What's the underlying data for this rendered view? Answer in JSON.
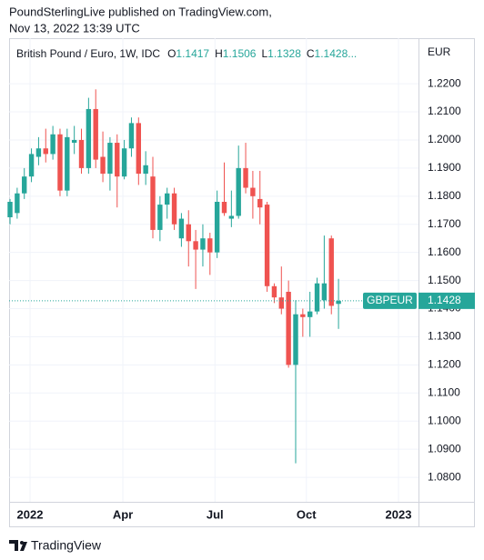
{
  "header": {
    "line1": "PoundSterlingLive published on TradingView.com,",
    "line2": "Nov 13, 2022 13:39 UTC"
  },
  "footer": {
    "brand": "TradingView"
  },
  "chart_data": {
    "type": "candlestick",
    "title": "British Pound / Euro, 1W, IDC",
    "ohlc_labels": [
      "O",
      "H",
      "L",
      "C"
    ],
    "legend_more": "...",
    "currency": "EUR",
    "symbol": "GBPEUR",
    "up_color": "#26a69a",
    "down_color": "#ef5350",
    "grid": true,
    "x": [
      0,
      1,
      2,
      3,
      4,
      5,
      6,
      7,
      8,
      9,
      10,
      11,
      12,
      13,
      14,
      15,
      16,
      17,
      18,
      19,
      20,
      21,
      22,
      23,
      24,
      25,
      26,
      27,
      28,
      29,
      30,
      31,
      32,
      33,
      34,
      35,
      36,
      37,
      38,
      39,
      40,
      41,
      42,
      43,
      44,
      45,
      46
    ],
    "open": [
      1.1725,
      1.174,
      1.181,
      1.187,
      1.194,
      1.197,
      1.195,
      1.202,
      1.182,
      1.199,
      1.2,
      1.19,
      1.211,
      1.194,
      1.188,
      1.199,
      1.187,
      1.197,
      1.206,
      1.188,
      1.187,
      1.168,
      1.177,
      1.181,
      1.165,
      1.17,
      1.164,
      1.161,
      1.165,
      1.16,
      1.178,
      1.172,
      1.173,
      1.19,
      1.183,
      1.179,
      1.177,
      1.148,
      1.144,
      1.146,
      1.12,
      1.138,
      1.137,
      1.139,
      1.143,
      1.165,
      1.1417
    ],
    "high": [
      1.179,
      1.183,
      1.19,
      1.197,
      1.201,
      1.204,
      1.205,
      1.204,
      1.204,
      1.205,
      1.204,
      1.215,
      1.218,
      1.203,
      1.201,
      1.202,
      1.2,
      1.208,
      1.208,
      1.196,
      1.194,
      1.18,
      1.183,
      1.183,
      1.174,
      1.175,
      1.168,
      1.17,
      1.167,
      1.182,
      1.192,
      1.182,
      1.198,
      1.199,
      1.189,
      1.189,
      1.178,
      1.149,
      1.155,
      1.15,
      1.143,
      1.14,
      1.146,
      1.151,
      1.166,
      1.166,
      1.1506
    ],
    "low": [
      1.17,
      1.172,
      1.179,
      1.185,
      1.191,
      1.192,
      1.193,
      1.18,
      1.18,
      1.195,
      1.188,
      1.188,
      1.19,
      1.185,
      1.182,
      1.176,
      1.186,
      1.194,
      1.184,
      1.184,
      1.165,
      1.164,
      1.172,
      1.168,
      1.162,
      1.155,
      1.147,
      1.155,
      1.152,
      1.158,
      1.173,
      1.169,
      1.172,
      1.181,
      1.172,
      1.17,
      1.146,
      1.142,
      1.138,
      1.119,
      1.085,
      1.13,
      1.13,
      1.138,
      1.14,
      1.138,
      1.1328
    ],
    "close": [
      1.178,
      1.181,
      1.187,
      1.195,
      1.197,
      1.195,
      1.202,
      1.182,
      1.201,
      1.2,
      1.19,
      1.211,
      1.193,
      1.188,
      1.199,
      1.187,
      1.197,
      1.206,
      1.188,
      1.191,
      1.168,
      1.177,
      1.181,
      1.17,
      1.172,
      1.164,
      1.161,
      1.165,
      1.16,
      1.178,
      1.174,
      1.173,
      1.19,
      1.183,
      1.18,
      1.176,
      1.148,
      1.144,
      1.14,
      1.12,
      1.138,
      1.137,
      1.139,
      1.149,
      1.149,
      1.141,
      1.1428
    ],
    "xlim": [
      -0.13,
      57.2
    ],
    "xticks": [
      {
        "value": 2.8,
        "label": "2022"
      },
      {
        "value": 15.8,
        "label": "Apr"
      },
      {
        "value": 28.7,
        "label": "Jul"
      },
      {
        "value": 41.5,
        "label": "Oct"
      },
      {
        "value": 54.4,
        "label": "2023"
      }
    ],
    "ylim": [
      1.0713,
      1.2362
    ],
    "yticks": [
      {
        "value": 1.22,
        "label": "1.2200"
      },
      {
        "value": 1.21,
        "label": "1.2100"
      },
      {
        "value": 1.2,
        "label": "1.2000"
      },
      {
        "value": 1.19,
        "label": "1.1900"
      },
      {
        "value": 1.18,
        "label": "1.1800"
      },
      {
        "value": 1.17,
        "label": "1.1700"
      },
      {
        "value": 1.16,
        "label": "1.1600"
      },
      {
        "value": 1.15,
        "label": "1.1500"
      },
      {
        "value": 1.14,
        "label": "1.1400"
      },
      {
        "value": 1.13,
        "label": "1.1300"
      },
      {
        "value": 1.12,
        "label": "1.1200"
      },
      {
        "value": 1.11,
        "label": "1.1100"
      },
      {
        "value": 1.1,
        "label": "1.1000"
      },
      {
        "value": 1.09,
        "label": "1.0900"
      },
      {
        "value": 1.08,
        "label": "1.0800"
      }
    ]
  }
}
